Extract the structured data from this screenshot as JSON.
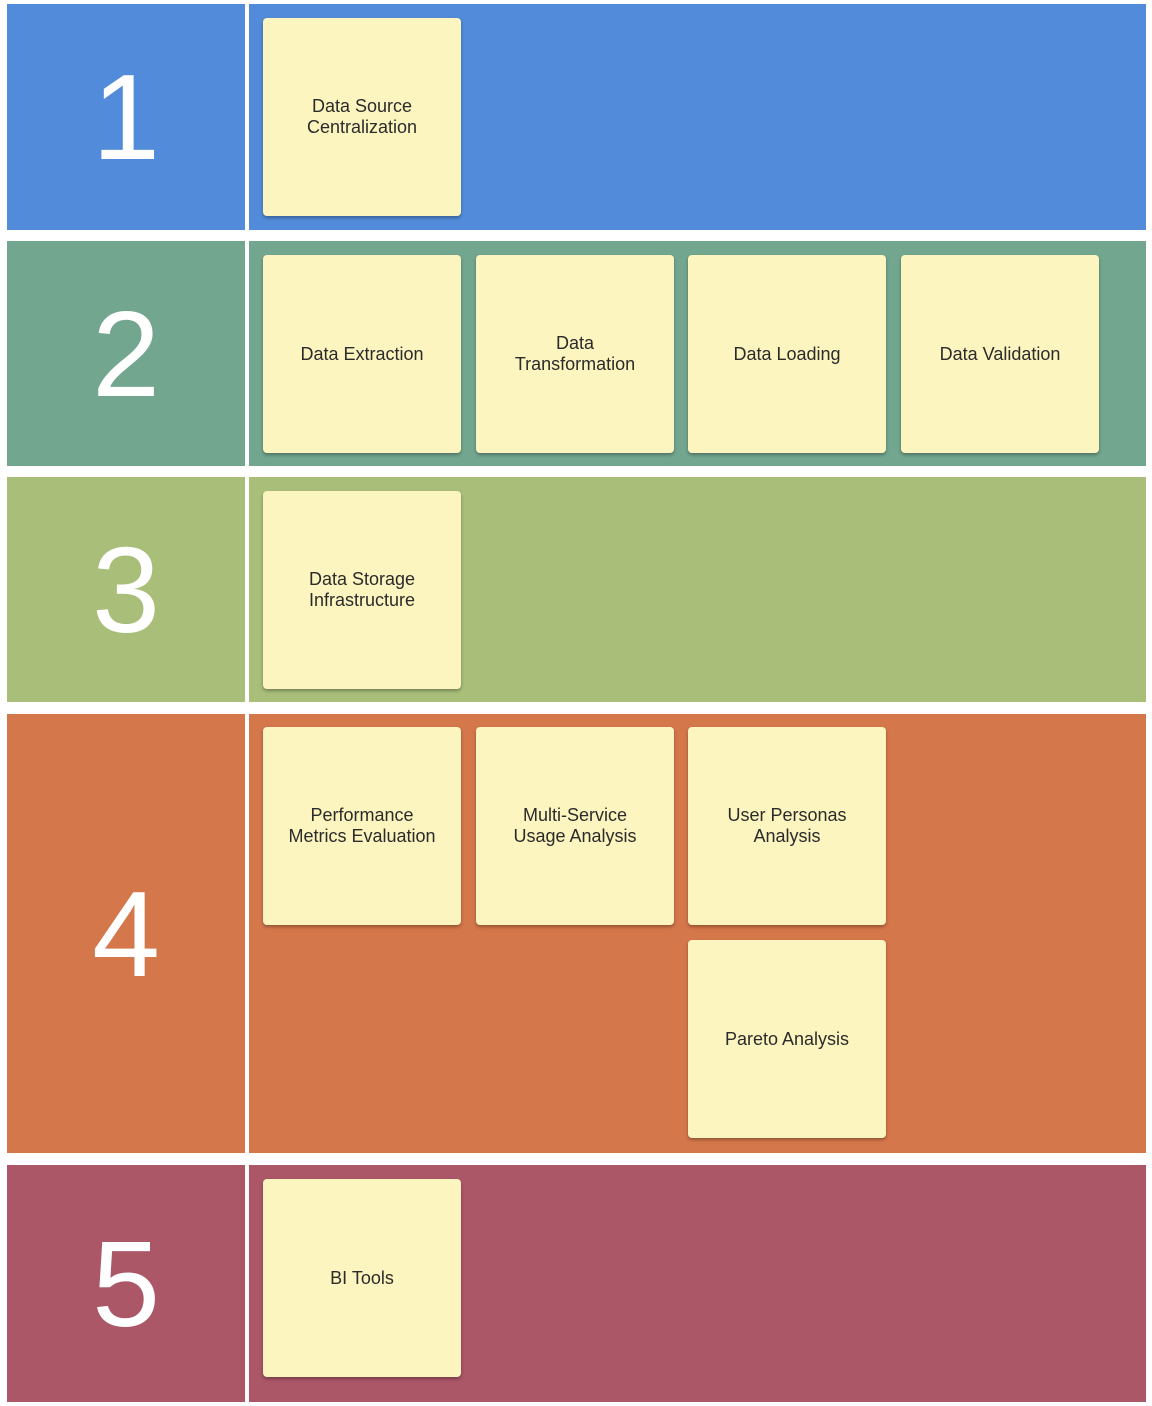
{
  "rows": [
    {
      "number": "1",
      "color": "#528bd9",
      "notes": [
        {
          "label": "Data Source\nCentralization"
        }
      ]
    },
    {
      "number": "2",
      "color": "#72a68e",
      "notes": [
        {
          "label": "Data Extraction"
        },
        {
          "label": "Data\nTransformation"
        },
        {
          "label": "Data Loading"
        },
        {
          "label": "Data Validation"
        }
      ]
    },
    {
      "number": "3",
      "color": "#a8be79",
      "notes": [
        {
          "label": "Data Storage\nInfrastructure"
        }
      ]
    },
    {
      "number": "4",
      "color": "#d4774b",
      "notes": [
        {
          "label": "Performance\nMetrics Evaluation"
        },
        {
          "label": "Multi-Service\nUsage Analysis"
        },
        {
          "label": "User Personas\nAnalysis"
        },
        {
          "label": "Pareto Analysis"
        }
      ]
    },
    {
      "number": "5",
      "color": "#ab5768",
      "notes": [
        {
          "label": "BI Tools"
        }
      ]
    }
  ],
  "note_color": "#fcf5bf"
}
